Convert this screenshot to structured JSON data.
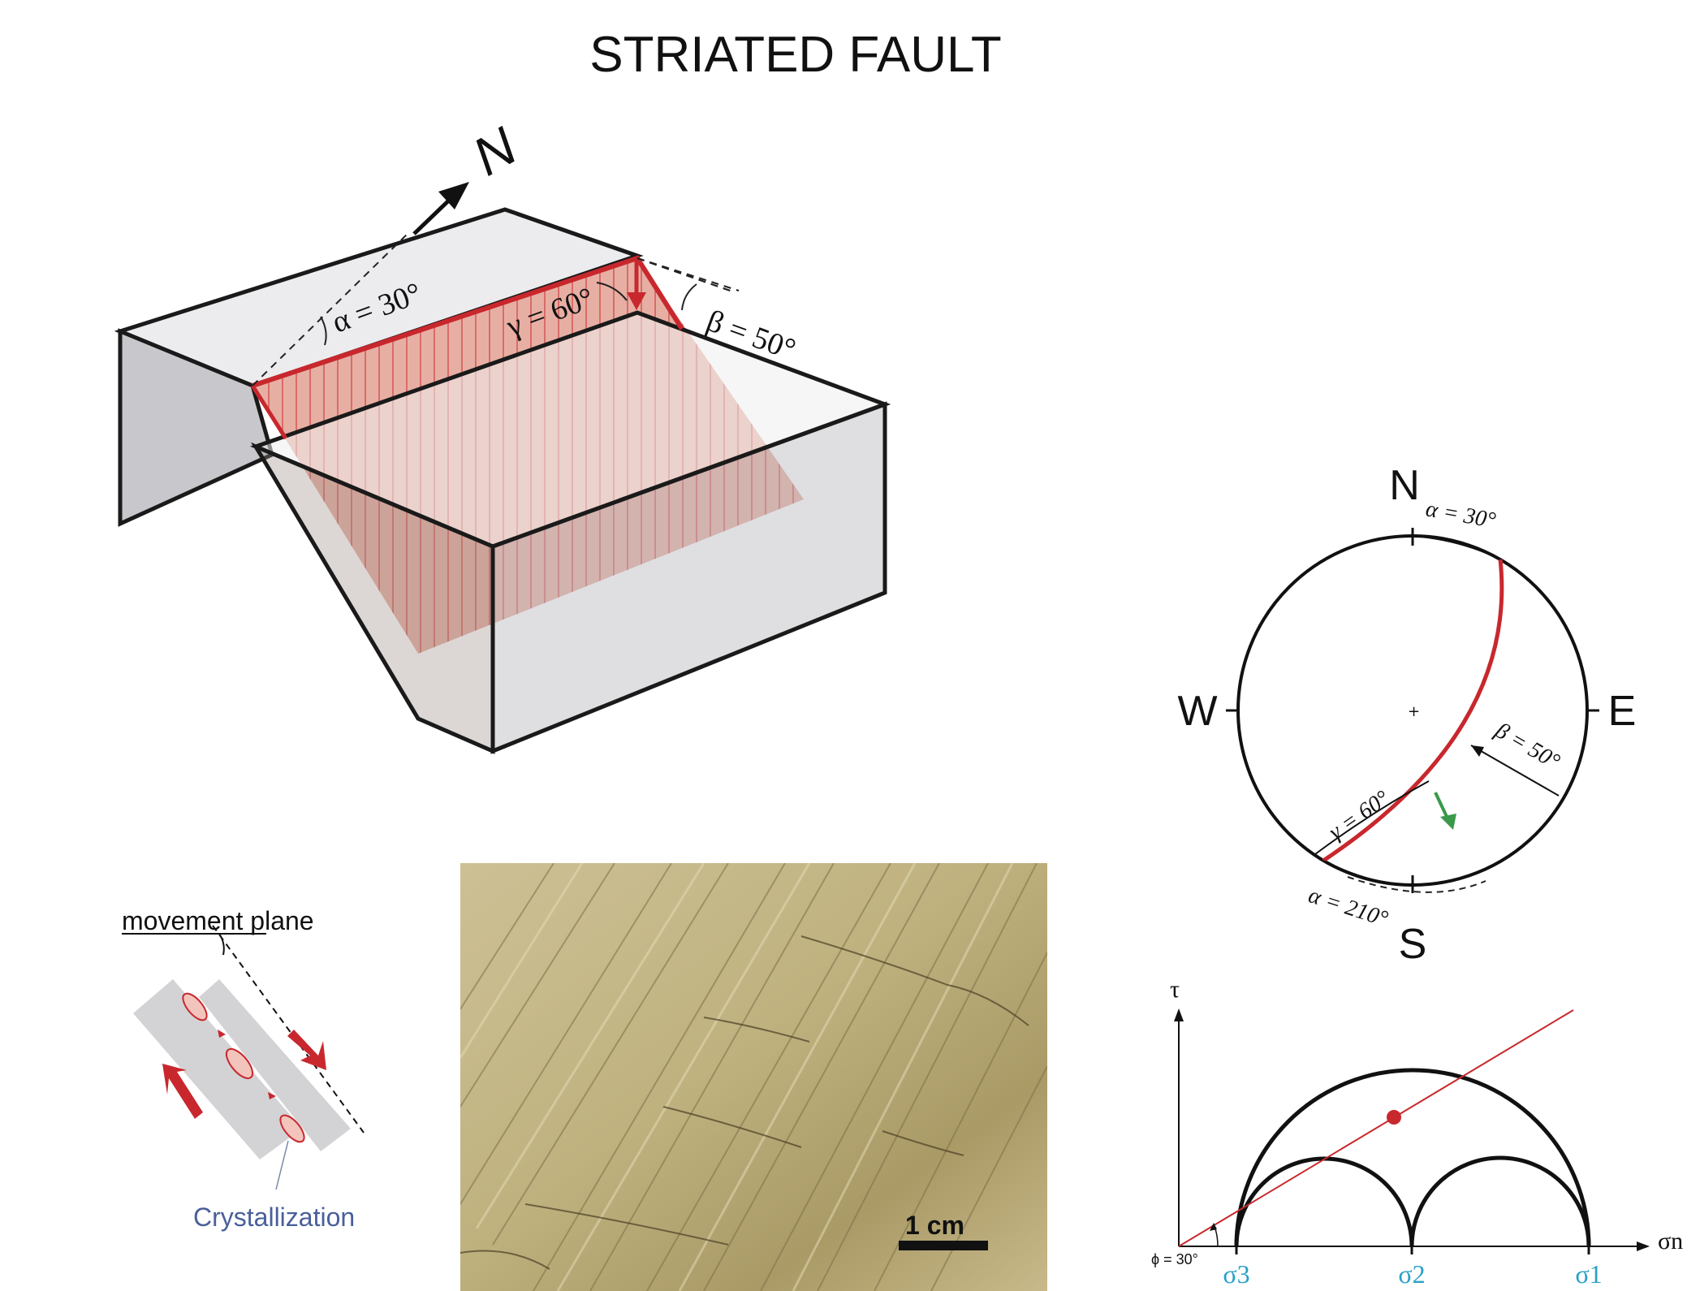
{
  "title": "STRIATED FAULT",
  "block": {
    "north": "N",
    "alpha": "α = 30°",
    "gamma": "γ = 60°",
    "beta": "β = 50°"
  },
  "stereonet": {
    "n": "N",
    "s": "S",
    "e": "E",
    "w": "W",
    "alpha_top": "α = 30°",
    "beta": "β = 50°",
    "gamma": "γ = 60°",
    "alpha_bottom": "α = 210°"
  },
  "movement": {
    "plane_label": "movement plane",
    "crystal_label": "Crystallization"
  },
  "photo": {
    "scale_label": "1 cm"
  },
  "mohr": {
    "tau": "τ",
    "sigma_n": "σn",
    "sigma3": "σ3",
    "sigma2": "σ2",
    "sigma1": "σ1",
    "phi": "ϕ = 30°"
  },
  "colors": {
    "fault_red": "#c8282d",
    "slip_green": "#3a9a4a",
    "sigma_blue": "#2aa0c8",
    "crystal_blue": "#4a5f9a"
  }
}
